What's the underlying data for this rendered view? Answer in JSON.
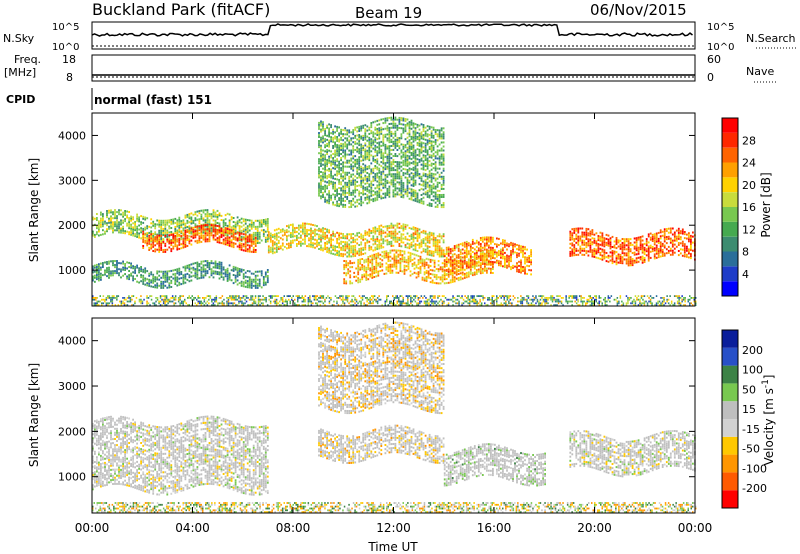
{
  "header": {
    "site": "Buckland Park (fitACF)",
    "beam": "Beam 19",
    "date": "06/Nov/2015"
  },
  "strip_labels": {
    "nsky": "N.Sky",
    "freq_line1": "Freq.",
    "freq_line2": "[MHz]",
    "cpid": "CPID",
    "nsearch": "N.Search",
    "nave": "Nave",
    "cpid_text": "normal (fast) 151"
  },
  "strip_ticks": {
    "nsky_left": [
      "10^5",
      "10^0"
    ],
    "nsearch_right": [
      "10^5",
      "10^0"
    ],
    "freq_left": [
      "18",
      "8"
    ],
    "nave_right": [
      "60",
      "0"
    ]
  },
  "colors": {
    "power_scale": [
      "#0000ff",
      "#1e3cc8",
      "#2a6e9a",
      "#3c8c70",
      "#46aa50",
      "#78c850",
      "#c8dc3c",
      "#ffd200",
      "#ffa000",
      "#ff6400",
      "#ff2800",
      "#ff0000"
    ],
    "velocity_scale": [
      "#0a1e9b",
      "#2850c8",
      "#3c8246",
      "#78c850",
      "#bebebe",
      "#d2d2d2",
      "#ffc800",
      "#ff9600",
      "#ff5a00",
      "#ff0000"
    ],
    "ground_scatter": "#c0c0c0"
  },
  "chart_data": [
    {
      "type": "heatmap",
      "title": "",
      "xlabel": "",
      "ylabel": "Slant Range [km]",
      "x_ticks": [
        "00:00",
        "04:00",
        "08:00",
        "12:00",
        "16:00",
        "20:00",
        "00:00"
      ],
      "y_ticks": [
        "1000",
        "2000",
        "3000",
        "4000"
      ],
      "ylim": [
        200,
        4500
      ],
      "colorbar_label": "Power [dB]",
      "colorbar_ticks": [
        "4",
        "8",
        "12",
        "16",
        "20",
        "24",
        "28"
      ],
      "colorbar_range": [
        0,
        30
      ],
      "bands": [
        {
          "t_start_h": 0.0,
          "t_end_h": 7.0,
          "range_km": [
            1700,
            2200
          ],
          "power_db": 14
        },
        {
          "t_start_h": 2.0,
          "t_end_h": 6.5,
          "range_km": [
            1500,
            1900
          ],
          "power_db": 24
        },
        {
          "t_start_h": 0.0,
          "t_end_h": 7.0,
          "range_km": [
            700,
            1100
          ],
          "power_db": 10
        },
        {
          "t_start_h": 7.0,
          "t_end_h": 14.0,
          "range_km": [
            1400,
            1900
          ],
          "power_db": 18
        },
        {
          "t_start_h": 10.0,
          "t_end_h": 16.0,
          "range_km": [
            800,
            1300
          ],
          "power_db": 20
        },
        {
          "t_start_h": 9.0,
          "t_end_h": 14.0,
          "range_km": [
            2500,
            4300
          ],
          "power_db": 12
        },
        {
          "t_start_h": 14.0,
          "t_end_h": 17.5,
          "range_km": [
            1000,
            1600
          ],
          "power_db": 22
        },
        {
          "t_start_h": 19.0,
          "t_end_h": 24.0,
          "range_km": [
            1200,
            1800
          ],
          "power_db": 24
        }
      ]
    },
    {
      "type": "heatmap",
      "title": "",
      "xlabel": "Time UT",
      "ylabel": "Slant Range [km]",
      "x_ticks": [
        "00:00",
        "04:00",
        "08:00",
        "12:00",
        "16:00",
        "20:00",
        "00:00"
      ],
      "y_ticks": [
        "1000",
        "2000",
        "3000",
        "4000"
      ],
      "ylim": [
        200,
        4500
      ],
      "colorbar_label": "Velocity [m s^-1]",
      "colorbar_ticks": [
        "200",
        "100",
        "50",
        "15",
        "-15",
        "-50",
        "-100",
        "-200"
      ],
      "colorbar_range": [
        -250,
        250
      ],
      "bands": [
        {
          "t_start_h": 0.0,
          "t_end_h": 7.0,
          "range_km": [
            700,
            2200
          ],
          "velocity": 0
        },
        {
          "t_start_h": 9.0,
          "t_end_h": 14.0,
          "range_km": [
            1400,
            2000
          ],
          "velocity": -40
        },
        {
          "t_start_h": 9.0,
          "t_end_h": 14.0,
          "range_km": [
            2500,
            4300
          ],
          "velocity": -60
        },
        {
          "t_start_h": 14.0,
          "t_end_h": 18.0,
          "range_km": [
            900,
            1600
          ],
          "velocity": 30
        },
        {
          "t_start_h": 19.0,
          "t_end_h": 24.0,
          "range_km": [
            1100,
            1900
          ],
          "velocity": 0
        }
      ]
    }
  ]
}
